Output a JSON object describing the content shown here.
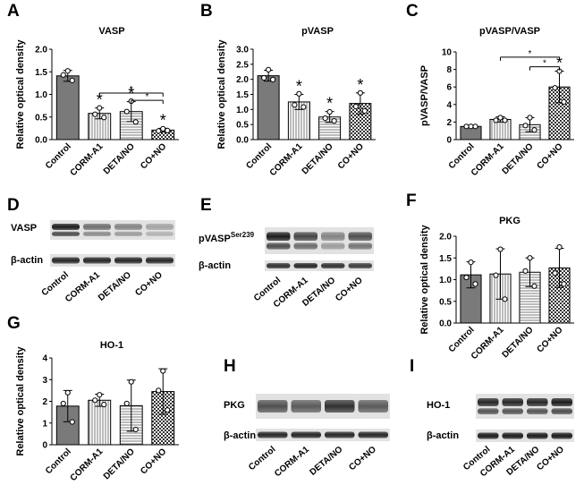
{
  "categories": [
    "Control",
    "CORM-A1",
    "DETA/NO",
    "CO+NO"
  ],
  "beta_actin_label": "β-actin",
  "significance_mark": "*",
  "chart_data": [
    {
      "panel": "A",
      "type": "bar",
      "title": "VASP",
      "ylabel": "Relative optical density",
      "ylim": [
        0,
        2.0
      ],
      "yticks": [
        "0.0",
        "0.5",
        "1.0",
        "1.5",
        "2.0"
      ],
      "categories": [
        "Control",
        "CORM-A1",
        "DETA/NO",
        "CO+NO"
      ],
      "values": [
        1.41,
        0.58,
        0.62,
        0.21
      ],
      "errors": [
        0.12,
        0.12,
        0.22,
        0.04
      ],
      "points": [
        [
          1.52,
          1.43,
          1.31
        ],
        [
          0.7,
          0.56,
          0.49
        ],
        [
          0.85,
          0.62,
          0.39
        ],
        [
          0.24,
          0.19,
          0.2
        ]
      ],
      "stars": [
        false,
        true,
        true,
        true
      ],
      "brackets": [
        {
          "from": 1,
          "to": 3,
          "y": 1.03,
          "label": "*"
        },
        {
          "from": 2,
          "to": 3,
          "y": 0.87,
          "label": "*"
        }
      ]
    },
    {
      "panel": "B",
      "type": "bar",
      "title": "pVASP",
      "ylabel": "Relative optical density",
      "ylim": [
        0,
        3.0
      ],
      "yticks": [
        "0.0",
        "0.5",
        "1.0",
        "1.5",
        "2.0",
        "2.5",
        "3.0"
      ],
      "categories": [
        "Control",
        "CORM-A1",
        "DETA/NO",
        "CO+NO"
      ],
      "values": [
        2.12,
        1.25,
        0.75,
        1.2
      ],
      "errors": [
        0.18,
        0.25,
        0.18,
        0.35
      ],
      "points": [
        [
          2.32,
          2.05,
          1.99
        ],
        [
          1.52,
          1.15,
          1.08
        ],
        [
          0.92,
          0.71,
          0.62
        ],
        [
          1.55,
          1.1,
          0.95
        ]
      ],
      "stars": [
        false,
        true,
        true,
        true
      ],
      "brackets": []
    },
    {
      "panel": "C",
      "type": "bar",
      "title": "pVASP/VASP",
      "ylabel": "pVASP/VASP",
      "ylim": [
        0,
        10
      ],
      "yticks": [
        "0",
        "2",
        "4",
        "6",
        "8",
        "10"
      ],
      "categories": [
        "Control",
        "CORM-A1",
        "DETA/NO",
        "CO+NO"
      ],
      "values": [
        1.5,
        2.3,
        1.7,
        6.0
      ],
      "errors": [
        0.1,
        0.3,
        0.8,
        1.8
      ],
      "points": [
        [
          1.5,
          1.5,
          1.5
        ],
        [
          2.5,
          2.2,
          2.2
        ],
        [
          2.5,
          1.6,
          1.1
        ],
        [
          7.8,
          5.9,
          4.3
        ]
      ],
      "stars": [
        false,
        false,
        false,
        true
      ],
      "brackets": [
        {
          "from": 1,
          "to": 3,
          "y": 9.4,
          "label": "*"
        },
        {
          "from": 2,
          "to": 3,
          "y": 8.3,
          "label": "*"
        }
      ]
    },
    {
      "panel": "F",
      "type": "bar",
      "title": "PKG",
      "ylabel": "Relative optical density",
      "ylim": [
        0,
        2.0
      ],
      "yticks": [
        "0.0",
        "0.5",
        "1.0",
        "1.5",
        "2.0"
      ],
      "categories": [
        "Control",
        "CORM-A1",
        "DETA/NO",
        "CO+NO"
      ],
      "values": [
        1.11,
        1.13,
        1.17,
        1.27
      ],
      "errors": [
        0.3,
        0.58,
        0.33,
        0.45
      ],
      "points": [
        [
          1.4,
          1.05,
          0.9
        ],
        [
          1.7,
          1.1,
          0.55
        ],
        [
          1.5,
          1.2,
          0.85
        ],
        [
          1.75,
          1.15,
          0.9
        ]
      ],
      "stars": [
        false,
        false,
        false,
        false
      ],
      "brackets": []
    },
    {
      "panel": "G",
      "type": "bar",
      "title": "HO-1",
      "ylabel": "Relative optical density",
      "ylim": [
        0,
        4
      ],
      "yticks": [
        "0",
        "1",
        "2",
        "3",
        "4"
      ],
      "categories": [
        "Control",
        "CORM-A1",
        "DETA/NO",
        "CO+NO"
      ],
      "values": [
        1.78,
        2.05,
        1.8,
        2.45
      ],
      "errors": [
        0.72,
        0.28,
        1.18,
        1.05
      ],
      "points": [
        [
          2.4,
          1.9,
          1.05
        ],
        [
          2.3,
          2.05,
          1.85
        ],
        [
          2.9,
          1.9,
          0.7
        ],
        [
          3.4,
          2.5,
          1.6
        ]
      ],
      "stars": [
        false,
        false,
        false,
        false
      ],
      "brackets": []
    }
  ],
  "blots": [
    {
      "panel": "D",
      "labels": [
        {
          "text": "VASP"
        },
        {
          "text": "β-actin"
        }
      ]
    },
    {
      "panel": "E",
      "labels": [
        {
          "text": "pVASP",
          "sup": "Ser239"
        },
        {
          "text": "β-actin"
        }
      ]
    },
    {
      "panel": "H",
      "labels": [
        {
          "text": "PKG"
        },
        {
          "text": "β-actin"
        }
      ]
    },
    {
      "panel": "I",
      "labels": [
        {
          "text": "HO-1"
        },
        {
          "text": "β-actin"
        }
      ]
    }
  ]
}
